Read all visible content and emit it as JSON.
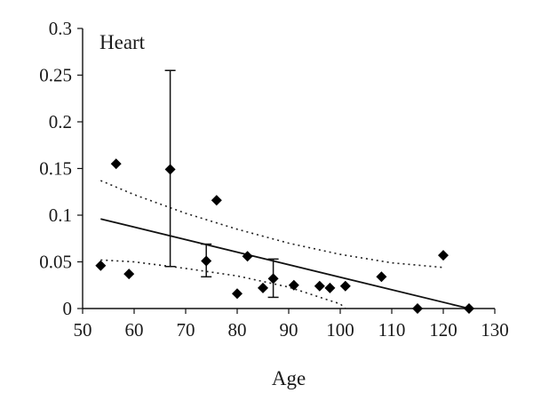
{
  "chart_data": {
    "type": "scatter",
    "title": "Heart",
    "xlabel": "Age",
    "ylabel": "",
    "xlim": [
      50,
      130
    ],
    "ylim": [
      0,
      0.3
    ],
    "x_ticks": [
      50,
      60,
      70,
      80,
      90,
      100,
      110,
      120,
      130
    ],
    "x_tick_labels": [
      "50",
      "60",
      "70",
      "80",
      "90",
      "100",
      "110",
      "120",
      "130"
    ],
    "y_ticks": [
      0,
      0.05,
      0.1,
      0.15,
      0.2,
      0.25,
      0.3
    ],
    "y_tick_labels": [
      "0",
      "0.05",
      "0.1",
      "0.15",
      "0.2",
      "0.25",
      "0.3"
    ],
    "points": [
      {
        "x": 53.5,
        "y": 0.046
      },
      {
        "x": 56.5,
        "y": 0.155
      },
      {
        "x": 59,
        "y": 0.037
      },
      {
        "x": 67,
        "y": 0.149,
        "err_low": 0.045,
        "err_high": 0.255
      },
      {
        "x": 74,
        "y": 0.051,
        "err_low": 0.034,
        "err_high": 0.069
      },
      {
        "x": 76,
        "y": 0.116
      },
      {
        "x": 80,
        "y": 0.016
      },
      {
        "x": 82,
        "y": 0.056
      },
      {
        "x": 85,
        "y": 0.022
      },
      {
        "x": 87,
        "y": 0.032,
        "err_low": 0.012,
        "err_high": 0.053
      },
      {
        "x": 91,
        "y": 0.025
      },
      {
        "x": 96,
        "y": 0.024
      },
      {
        "x": 98,
        "y": 0.022
      },
      {
        "x": 101,
        "y": 0.024
      },
      {
        "x": 108,
        "y": 0.034
      },
      {
        "x": 115,
        "y": 0.0
      },
      {
        "x": 120,
        "y": 0.057
      },
      {
        "x": 125,
        "y": 0.0
      }
    ],
    "fit_line": {
      "x": [
        53.5,
        125
      ],
      "y": [
        0.096,
        0.0
      ]
    },
    "upper_band": {
      "x": [
        53.5,
        60,
        70,
        80,
        90,
        100,
        110,
        120
      ],
      "y": [
        0.137,
        0.122,
        0.102,
        0.085,
        0.07,
        0.058,
        0.049,
        0.044
      ]
    },
    "lower_band": {
      "x": [
        53.5,
        60,
        70,
        80,
        90,
        100,
        101
      ],
      "y": [
        0.052,
        0.05,
        0.043,
        0.035,
        0.023,
        0.005,
        0.0
      ]
    }
  }
}
